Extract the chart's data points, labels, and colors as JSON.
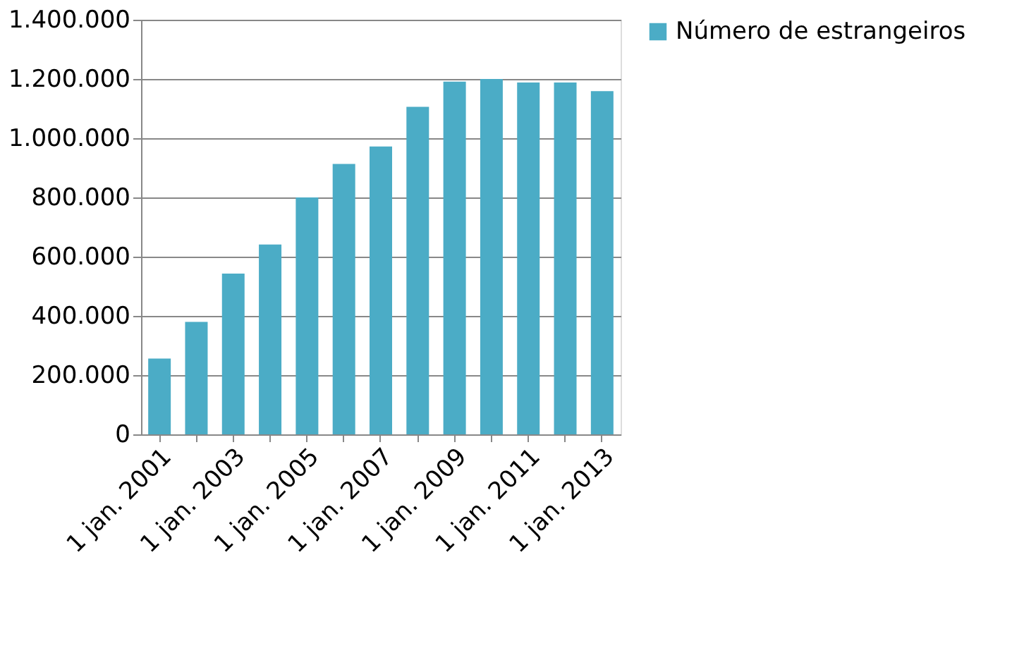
{
  "chart_data": {
    "type": "bar",
    "categories": [
      "1 jan. 2001",
      null,
      "1 jan. 2003",
      null,
      "1 jan. 2005",
      null,
      "1 jan. 2007",
      null,
      "1 jan. 2009",
      null,
      "1 jan. 2011",
      null,
      "1 jan. 2013"
    ],
    "series": [
      {
        "name": "Número de estrangeiros",
        "color": "#4bacc6",
        "values": [
          256000,
          380000,
          543000,
          641000,
          800000,
          913000,
          972000,
          1106000,
          1191000,
          1200000,
          1188000,
          1188000,
          1159000
        ]
      }
    ],
    "ylim": [
      0,
      1400000
    ],
    "yticks": [
      0,
      {
        "value": 200000,
        "label": "200.000"
      },
      {
        "value": 400000,
        "label": "400.000"
      },
      {
        "value": 600000,
        "label": "600.000"
      },
      {
        "value": 800000,
        "label": "800.000"
      },
      {
        "value": 1000000,
        "label": "1.000.000"
      },
      {
        "value": 1200000,
        "label": "1.200.000"
      },
      {
        "value": 1400000,
        "label": "1.400.000"
      }
    ],
    "grid": "y",
    "legend": "right"
  }
}
